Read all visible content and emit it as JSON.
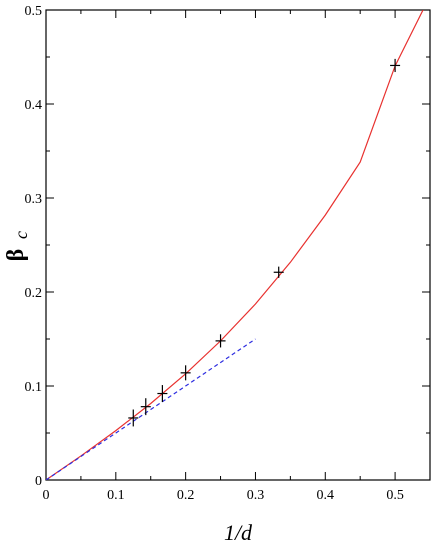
{
  "chart_data": {
    "type": "scatter",
    "title": "",
    "xlabel": "1/d",
    "ylabel": "β",
    "ylabel_subscript": "c",
    "xlim": [
      0,
      0.55
    ],
    "ylim": [
      0,
      0.5
    ],
    "x_ticks": [
      0,
      0.1,
      0.2,
      0.3,
      0.4,
      0.5
    ],
    "x_tick_labels": [
      "0",
      "0.1",
      "0.2",
      "0.3",
      "0.4",
      "0.5"
    ],
    "y_ticks": [
      0,
      0.1,
      0.2,
      0.3,
      0.4,
      0.5
    ],
    "y_tick_labels": [
      "0",
      "0.1",
      "0.2",
      "0.3",
      "0.4",
      "0.5"
    ],
    "grid": false,
    "series": [
      {
        "kind": "points",
        "marker": "plus",
        "color": "#000000",
        "x": [
          0.125,
          0.1429,
          0.1667,
          0.2,
          0.25,
          0.3333,
          0.5
        ],
        "y": [
          0.066,
          0.078,
          0.092,
          0.114,
          0.148,
          0.221,
          0.441
        ],
        "yerr": [
          0.009,
          0.009,
          0.009,
          0.008,
          0.007,
          0.006,
          0.007
        ]
      },
      {
        "kind": "line",
        "style": "solid",
        "color": "#e8312f",
        "x": [
          0,
          0.05,
          0.1,
          0.15,
          0.2,
          0.25,
          0.3,
          0.35,
          0.4,
          0.45,
          0.5,
          0.54
        ],
        "y": [
          0,
          0.0256,
          0.0525,
          0.0814,
          0.113,
          0.148,
          0.1872,
          0.2316,
          0.2818,
          0.3382,
          0.4405,
          0.5
        ]
      },
      {
        "kind": "line",
        "style": "dashed",
        "color": "#2d2de0",
        "x": [
          0,
          0.3
        ],
        "y": [
          0,
          0.15
        ]
      }
    ]
  }
}
